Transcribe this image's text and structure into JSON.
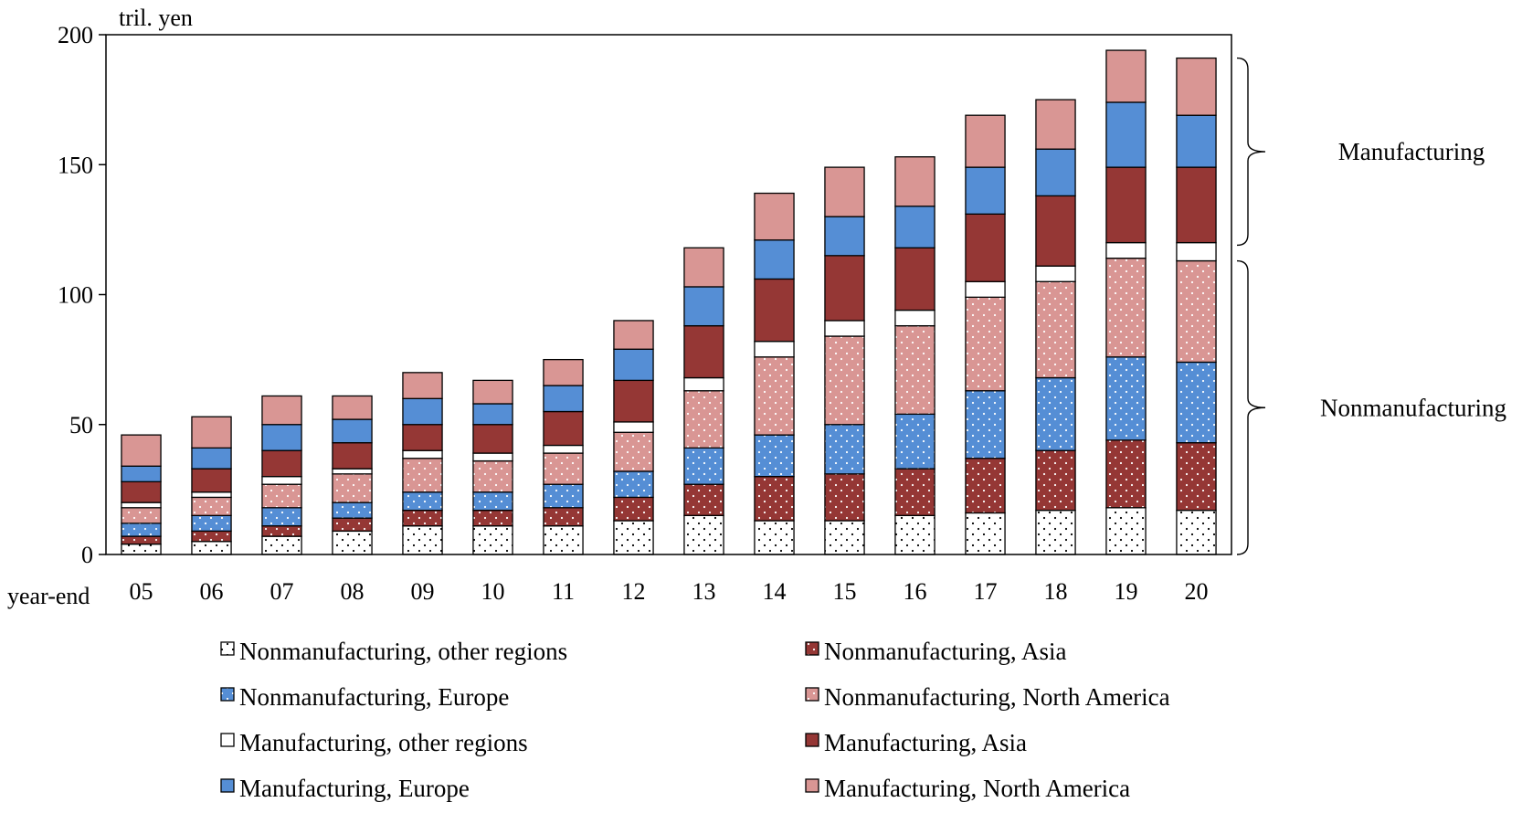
{
  "chart_data": {
    "type": "bar",
    "stacked": true,
    "unit_label": "tril. yen",
    "x_axis_label": "year-end",
    "categories": [
      "05",
      "06",
      "07",
      "08",
      "09",
      "10",
      "11",
      "12",
      "13",
      "14",
      "15",
      "16",
      "17",
      "18",
      "19",
      "20"
    ],
    "ylim": [
      0,
      200
    ],
    "y_ticks": [
      0,
      50,
      100,
      150,
      200
    ],
    "grid": false,
    "series": [
      {
        "name": "Nonmanufacturing, other regions",
        "group": "Nonmanufacturing",
        "fill": "#ffffff",
        "pattern": "dots",
        "values": [
          4,
          5,
          7,
          9,
          11,
          11,
          11,
          13,
          15,
          13,
          13,
          15,
          16,
          17,
          18,
          17
        ]
      },
      {
        "name": "Nonmanufacturing, Asia",
        "group": "Nonmanufacturing",
        "fill": "#953735",
        "pattern": "dots",
        "values": [
          3,
          4,
          4,
          5,
          6,
          6,
          7,
          9,
          12,
          17,
          18,
          18,
          21,
          23,
          26,
          26
        ]
      },
      {
        "name": "Nonmanufacturing, Europe",
        "group": "Nonmanufacturing",
        "fill": "#558ed5",
        "pattern": "dots",
        "values": [
          5,
          6,
          7,
          6,
          7,
          7,
          9,
          10,
          14,
          16,
          19,
          21,
          26,
          28,
          32,
          31
        ]
      },
      {
        "name": "Nonmanufacturing, North America",
        "group": "Nonmanufacturing",
        "fill": "#d99694",
        "pattern": "dots",
        "values": [
          6,
          7,
          9,
          11,
          13,
          12,
          12,
          15,
          22,
          30,
          34,
          34,
          36,
          37,
          38,
          39
        ]
      },
      {
        "name": "Manufacturing, other regions",
        "group": "Manufacturing",
        "fill": "#ffffff",
        "pattern": "none",
        "values": [
          2,
          2,
          3,
          2,
          3,
          3,
          3,
          4,
          5,
          6,
          6,
          6,
          6,
          6,
          6,
          7
        ]
      },
      {
        "name": "Manufacturing, Asia",
        "group": "Manufacturing",
        "fill": "#953735",
        "pattern": "none",
        "values": [
          8,
          9,
          10,
          10,
          10,
          11,
          13,
          16,
          20,
          24,
          25,
          24,
          26,
          27,
          29,
          29
        ]
      },
      {
        "name": "Manufacturing, Europe",
        "group": "Manufacturing",
        "fill": "#558ed5",
        "pattern": "none",
        "values": [
          6,
          8,
          10,
          9,
          10,
          8,
          10,
          12,
          15,
          15,
          15,
          16,
          18,
          18,
          25,
          20
        ]
      },
      {
        "name": "Manufacturing, North America",
        "group": "Manufacturing",
        "fill": "#d99694",
        "pattern": "none",
        "values": [
          12,
          12,
          11,
          9,
          10,
          9,
          10,
          11,
          15,
          18,
          19,
          19,
          20,
          19,
          20,
          22
        ]
      }
    ],
    "legend_order": [
      0,
      1,
      2,
      3,
      4,
      5,
      6,
      7
    ],
    "legend_placement": "bottom, two columns",
    "group_brackets": [
      {
        "label": "Manufacturing",
        "from": 119,
        "to": 191
      },
      {
        "label": "Nonmanufacturing",
        "from": 0,
        "to": 113
      }
    ]
  }
}
